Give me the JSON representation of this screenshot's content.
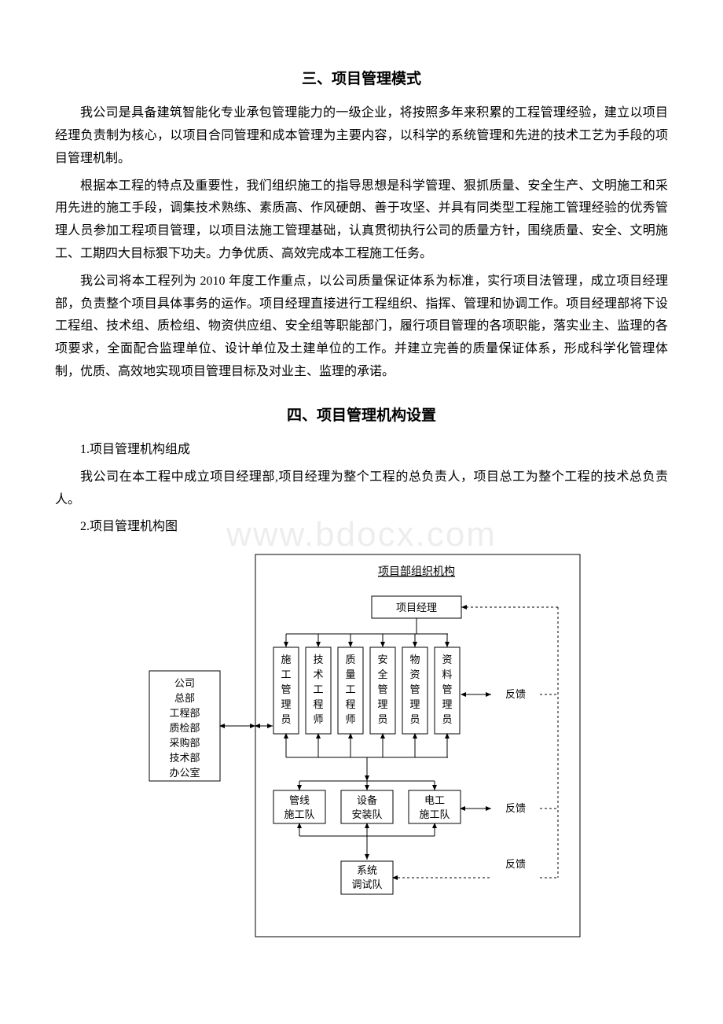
{
  "section1": {
    "heading": "三、项目管理模式",
    "para1": "我公司是具备建筑智能化专业承包管理能力的一级企业，将按照多年来积累的工程管理经验，建立以项目经理负责制为核心，以项目合同管理和成本管理为主要内容，以科学的系统管理和先进的技术工艺为手段的项目管理机制。",
    "para2": "根据本工程的特点及重要性，我们组织施工的指导思想是科学管理、狠抓质量、安全生产、文明施工和采用先进的施工手段，调集技术熟练、素质高、作风硬朗、善于攻坚、并具有同类型工程施工管理经验的优秀管理人员参加工程项目管理，以项目法施工管理基础，认真贯彻执行公司的质量方针，围绕质量、安全、文明施工、工期四大目标狠下功夫。力争优质、高效完成本工程施工任务。",
    "para3": "我公司将本工程列为 2010 年度工作重点，以公司质量保证体系为标准，实行项目法管理，成立项目经理部，负责整个项目具体事务的运作。项目经理直接进行工程组织、指挥、管理和协调工作。项目经理部将下设工程组、技术组、质检组、物资供应组、安全组等职能部门，履行项目管理的各项职能，落实业主、监理的各项要求，全面配合监理单位、设计单位及土建单位的工作。并建立完善的质量保证体系，形成科学化管理体制，优质、高效地实现项目管理目标及对业主、监理的承诺。"
  },
  "section2": {
    "heading": "四、项目管理机构设置",
    "item1": "1.项目管理机构组成",
    "para1": "我公司在本工程中成立项目经理部,项目经理为整个工程的总负责人，项目总工为整个工程的技术总负责人。",
    "item2": "2.项目管理机构图"
  },
  "watermark": "www.bdocx.com",
  "diagram": {
    "title": "项目部组织机构",
    "pm": "项目经理",
    "company": [
      "公司",
      "总部",
      "工程部",
      "质检部",
      "采购部",
      "技术部",
      "办公室"
    ],
    "staff": [
      [
        "施",
        "工",
        "管",
        "理",
        "员"
      ],
      [
        "技",
        "术",
        "工",
        "程",
        "师"
      ],
      [
        "质",
        "量",
        "工",
        "程",
        "师"
      ],
      [
        "安",
        "全",
        "管",
        "理",
        "员"
      ],
      [
        "物",
        "资",
        "管",
        "理",
        "员"
      ],
      [
        "资",
        "料",
        "管",
        "理",
        "员"
      ]
    ],
    "teams": [
      "管线\n施工队",
      "设备\n安装队",
      "电工\n施工队"
    ],
    "debug": "系统\n调试队",
    "feedback": "反馈",
    "colors": {
      "stroke": "#000000",
      "bg": "#ffffff"
    }
  }
}
